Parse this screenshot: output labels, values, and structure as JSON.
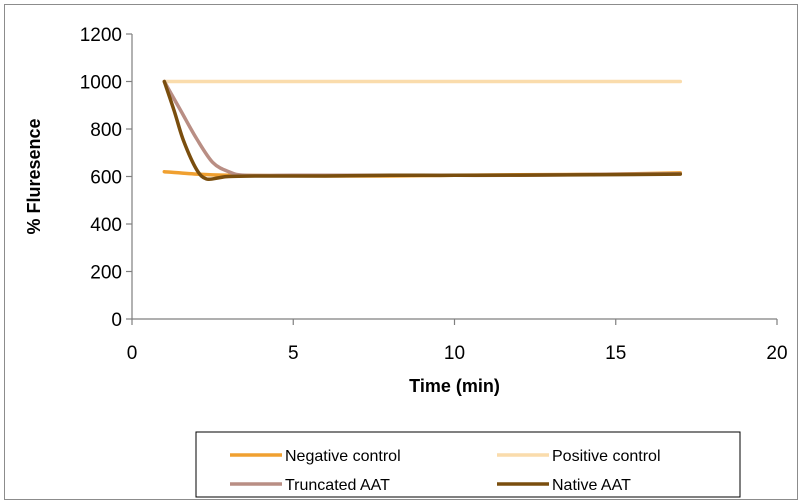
{
  "chart_data": {
    "type": "line",
    "title": "",
    "xlabel": "Time (min)",
    "ylabel": "% Fluresence",
    "xlim": [
      0,
      20
    ],
    "ylim": [
      0,
      1200
    ],
    "x_ticks": [
      0,
      5,
      10,
      15,
      20
    ],
    "y_ticks": [
      0,
      200,
      400,
      600,
      800,
      1000,
      1200
    ],
    "grid": false,
    "legend_position": "bottom",
    "series": [
      {
        "name": "Negative control",
        "color": "#f0a030",
        "x": [
          1,
          2,
          3,
          5,
          8,
          10,
          12,
          15,
          17
        ],
        "y": [
          620,
          610,
          605,
          603,
          602,
          605,
          607,
          610,
          615
        ]
      },
      {
        "name": "Positive control",
        "color": "#fadcac",
        "x": [
          1,
          3,
          5,
          8,
          10,
          12,
          15,
          17
        ],
        "y": [
          1000,
          1000,
          1000,
          1000,
          1000,
          1000,
          1000,
          1000
        ]
      },
      {
        "name": "Truncated AAT",
        "color": "#b98e84",
        "x": [
          1,
          1.5,
          2,
          2.5,
          3,
          3.5,
          5,
          8,
          10,
          12,
          15,
          17
        ],
        "y": [
          1000,
          880,
          760,
          660,
          620,
          605,
          605,
          605,
          605,
          605,
          610,
          612
        ]
      },
      {
        "name": "Native AAT",
        "color": "#7a4e0e",
        "x": [
          1,
          1.3,
          1.6,
          2,
          2.3,
          2.7,
          3,
          4,
          6,
          8,
          10,
          12,
          15,
          17
        ],
        "y": [
          1000,
          880,
          750,
          630,
          590,
          595,
          600,
          602,
          602,
          605,
          605,
          606,
          608,
          610
        ]
      }
    ]
  }
}
